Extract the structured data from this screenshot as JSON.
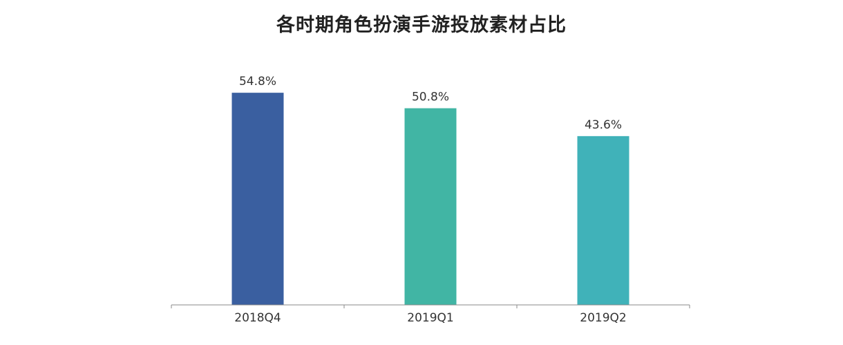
{
  "chart_data": {
    "type": "bar",
    "title": "各时期角色扮演手游投放素材占比",
    "categories": [
      "2018Q4",
      "2019Q1",
      "2019Q2"
    ],
    "values": [
      54.8,
      50.8,
      43.6
    ],
    "value_labels": [
      "54.8%",
      "50.8%",
      "43.6%"
    ],
    "unit": "%",
    "ylim": [
      0,
      55.9
    ],
    "grid": false,
    "bar_colors": [
      "#3a5fa0",
      "#41b5a4",
      "#40b2b9"
    ],
    "xlabel": "",
    "ylabel": ""
  }
}
